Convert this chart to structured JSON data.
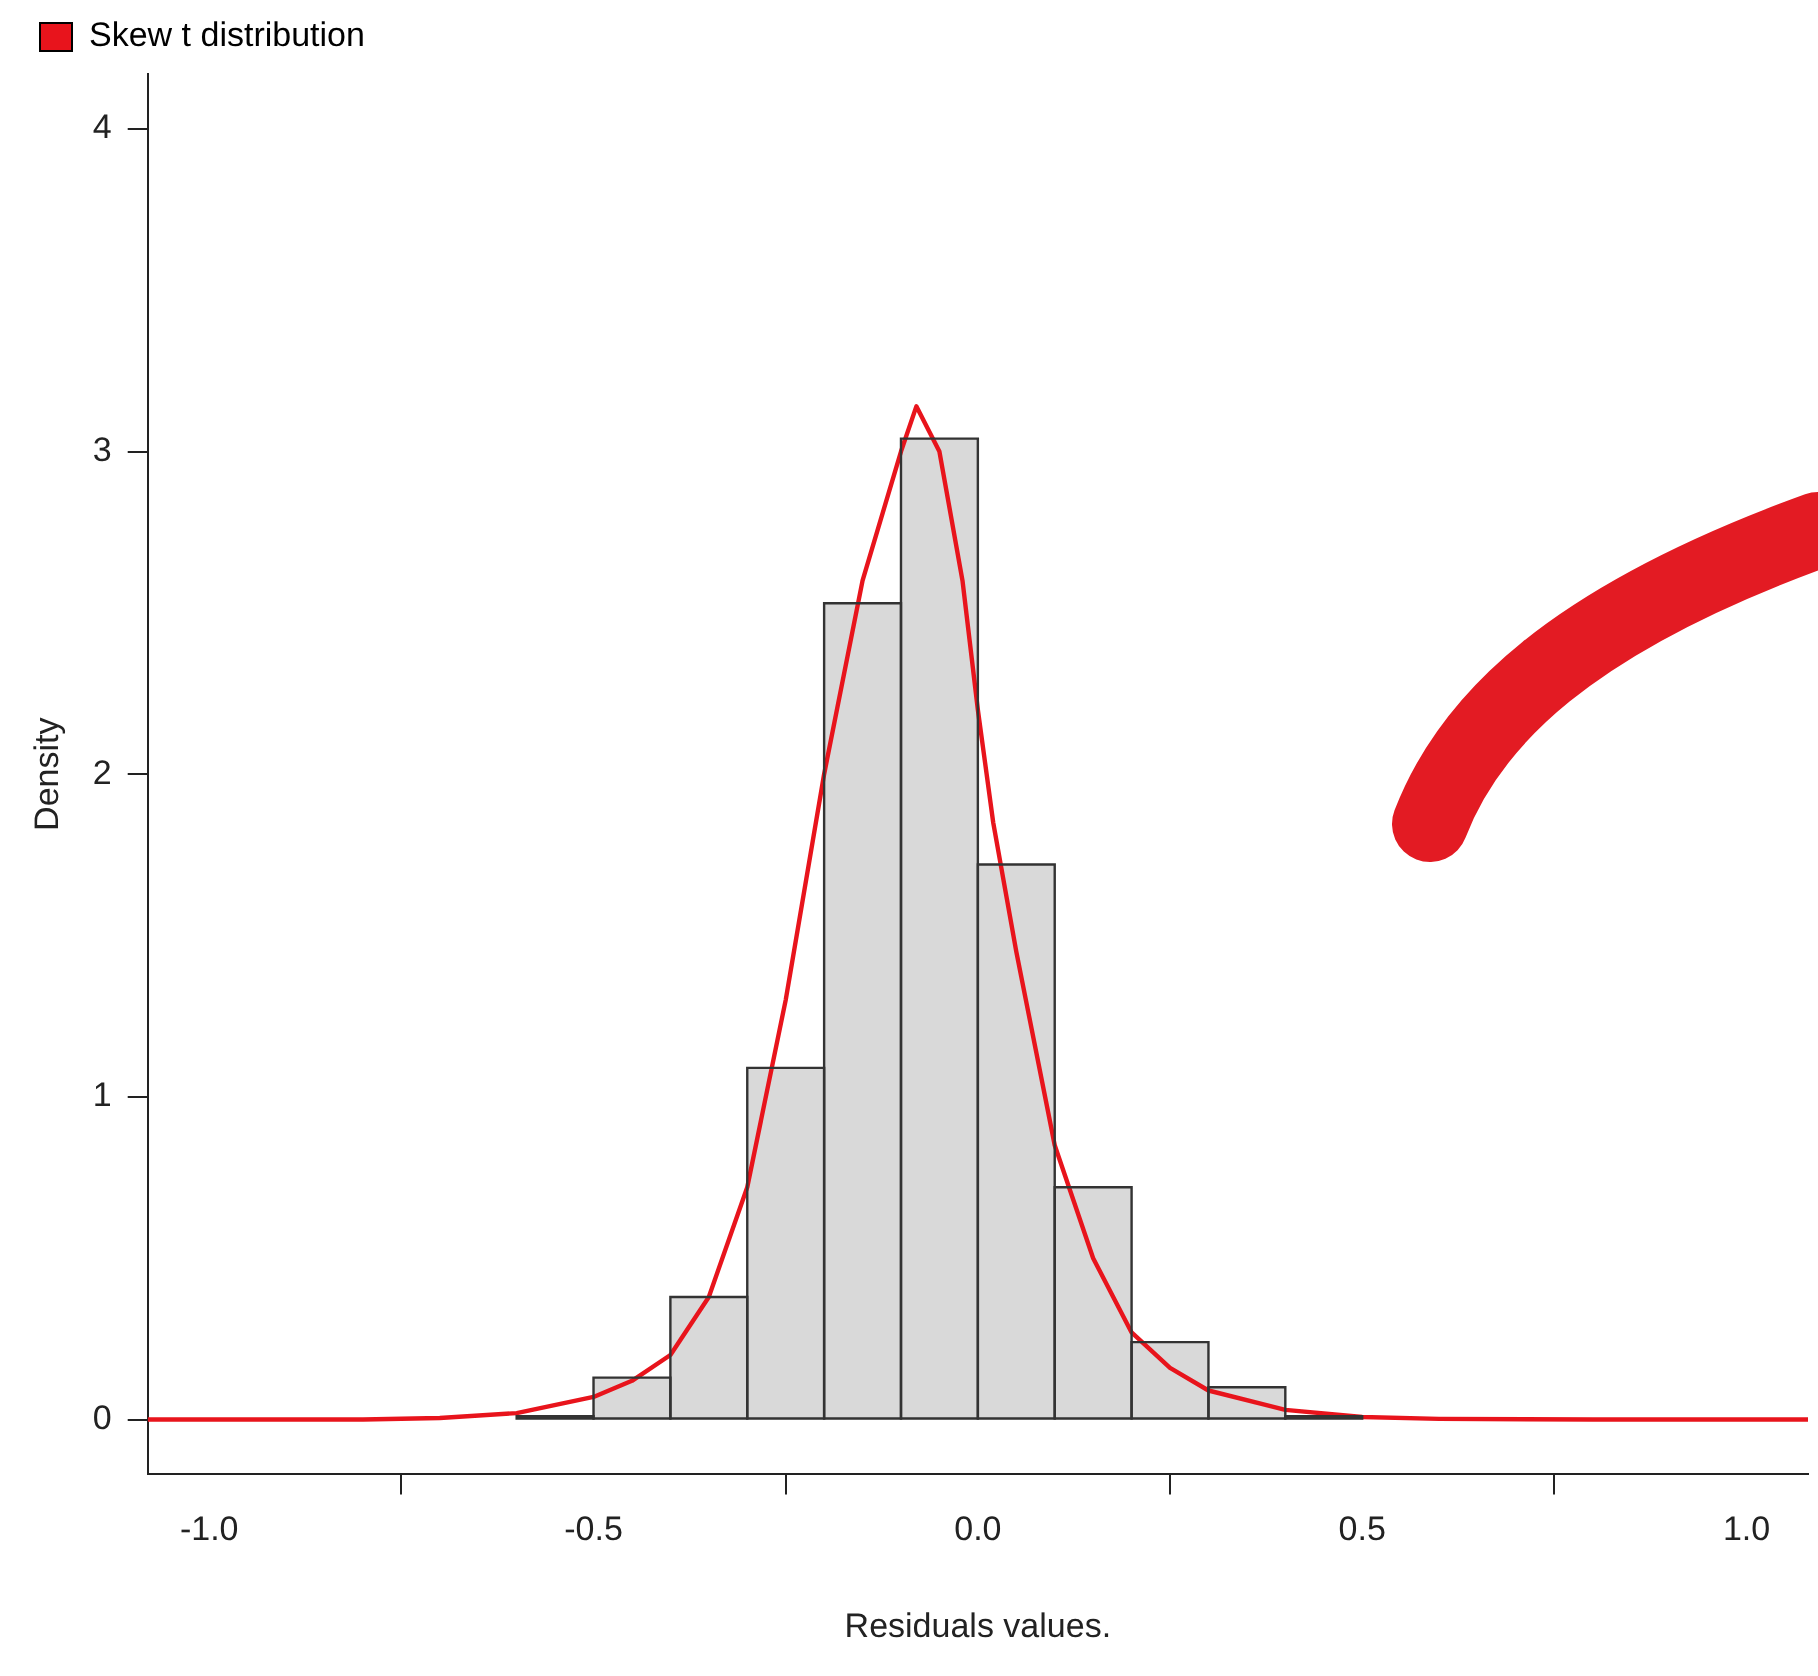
{
  "chart_data": {
    "type": "histogram",
    "xlabel": "Residuals values.",
    "ylabel": "Density",
    "bins": [
      -0.6,
      -0.5,
      -0.4,
      -0.3,
      -0.2,
      -0.1,
      0.0,
      0.1,
      0.2,
      0.3,
      0.4,
      0.5
    ],
    "values": [
      0.01,
      0.13,
      0.38,
      1.09,
      2.53,
      3.04,
      1.72,
      0.72,
      0.24,
      0.1,
      0.01
    ],
    "color": "#d9d9d9",
    "series": [
      {
        "type": "line",
        "name": "Skew t distribution",
        "color": "#e8141c",
        "x": [
          -1.08,
          -0.8,
          -0.7,
          -0.6,
          -0.5,
          -0.45,
          -0.4,
          -0.35,
          -0.3,
          -0.25,
          -0.2,
          -0.15,
          -0.1,
          -0.08,
          -0.05,
          -0.02,
          0.0,
          0.02,
          0.05,
          0.1,
          0.15,
          0.2,
          0.25,
          0.3,
          0.4,
          0.5,
          0.6,
          0.8,
          1.08
        ],
        "values": [
          0,
          0,
          0.005,
          0.02,
          0.07,
          0.12,
          0.2,
          0.38,
          0.72,
          1.3,
          2.0,
          2.6,
          3.0,
          3.14,
          3.0,
          2.6,
          2.2,
          1.85,
          1.45,
          0.85,
          0.5,
          0.27,
          0.16,
          0.09,
          0.03,
          0.008,
          0.002,
          0,
          0
        ]
      }
    ],
    "xlim": [
      -1.08,
      1.08
    ],
    "ylim": [
      -0.17,
      4.17
    ],
    "xticks": [
      {
        "value": -1,
        "label": "-1.0"
      },
      {
        "value": -0.5,
        "label": "-0.5"
      },
      {
        "value": 0,
        "label": "0.0"
      },
      {
        "value": 0.5,
        "label": "0.5"
      },
      {
        "value": 1,
        "label": "1.0"
      }
    ],
    "yticks": [
      0,
      1,
      2,
      3,
      4
    ],
    "legend": "top left",
    "grid": false
  }
}
